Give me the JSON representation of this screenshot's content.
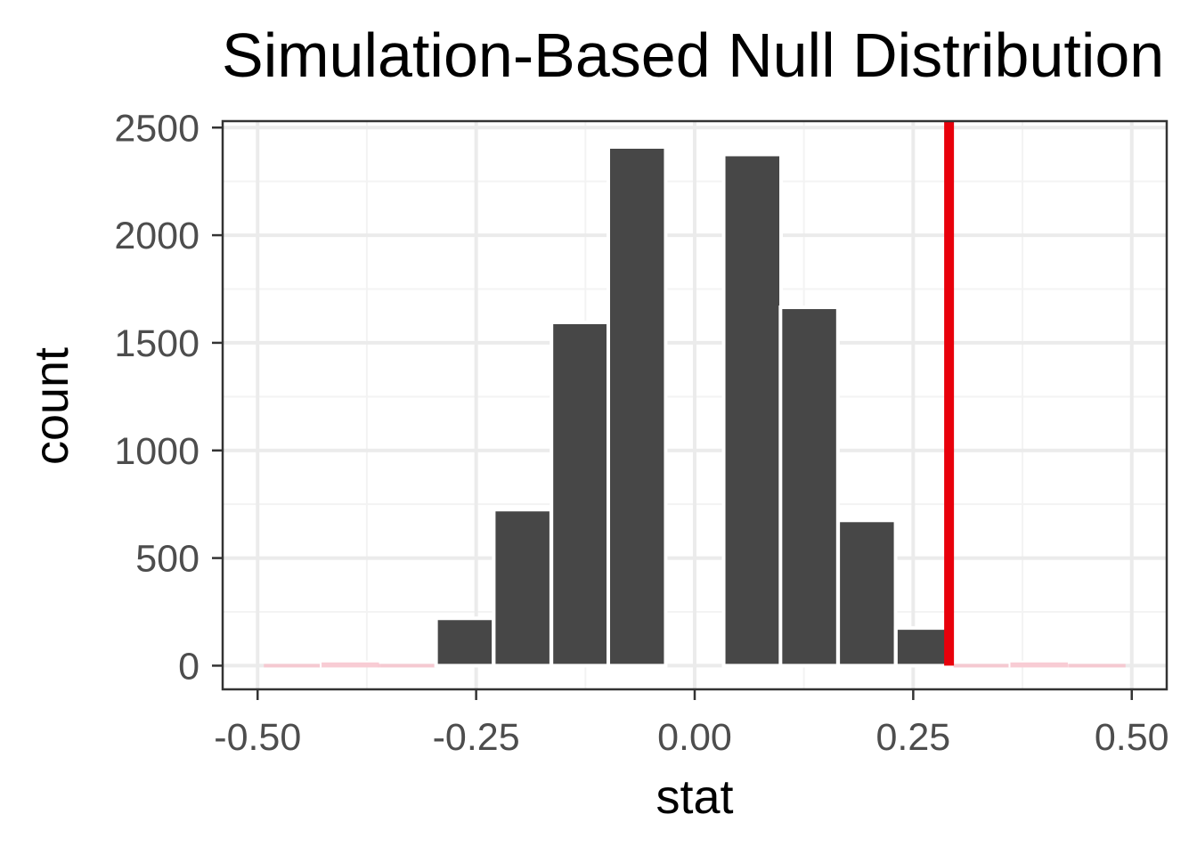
{
  "chart_data": {
    "type": "bar",
    "title": "Simulation-Based Null Distribution",
    "xlabel": "stat",
    "ylabel": "count",
    "xlim": [
      -0.54,
      0.54
    ],
    "ylim": [
      -110,
      2530
    ],
    "x_ticks": [
      -0.5,
      -0.25,
      0,
      0.25,
      0.5
    ],
    "x_tick_labels": [
      "-0.50",
      "-0.25",
      "0.00",
      "0.25",
      "0.50"
    ],
    "y_ticks": [
      0,
      500,
      1000,
      1500,
      2000,
      2500
    ],
    "y_tick_labels": [
      "0",
      "500",
      "1000",
      "1500",
      "2000",
      "2500"
    ],
    "bin_width": 0.0657,
    "bins": [
      {
        "x": -0.46,
        "count": 0
      },
      {
        "x": -0.394,
        "count": 15
      },
      {
        "x": -0.329,
        "count": 0
      },
      {
        "x": -0.263,
        "count": 220
      },
      {
        "x": -0.197,
        "count": 725
      },
      {
        "x": -0.131,
        "count": 1595
      },
      {
        "x": -0.066,
        "count": 2410
      },
      {
        "x": 0.0,
        "count": 0
      },
      {
        "x": 0.066,
        "count": 2375
      },
      {
        "x": 0.131,
        "count": 1665
      },
      {
        "x": 0.197,
        "count": 675
      },
      {
        "x": 0.263,
        "count": 175
      },
      {
        "x": 0.329,
        "count": 0
      },
      {
        "x": 0.394,
        "count": 15
      },
      {
        "x": 0.46,
        "count": 0
      }
    ],
    "observed_stat": 0.291,
    "shade_direction": "two-sided",
    "grid": true,
    "colors": {
      "bar_fill": "#474747",
      "bar_outline": "#ffffff",
      "shaded_bar_fill": "#f7c3cd",
      "observed_line": "#e8000b",
      "grid_major": "#ebebeb",
      "grid_minor": "#f3f3f3",
      "panel_border": "#333333",
      "tick_text": "#4d4d4d"
    }
  }
}
